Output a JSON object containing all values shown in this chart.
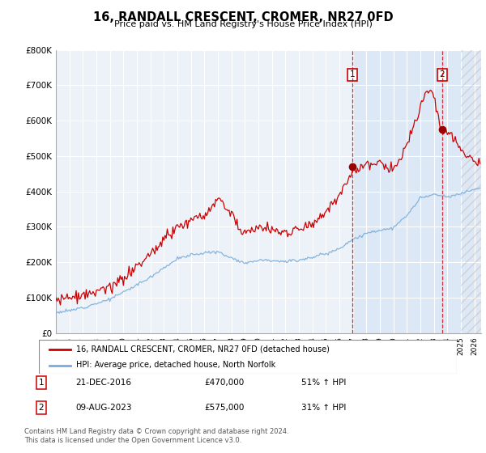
{
  "title": "16, RANDALL CRESCENT, CROMER, NR27 0FD",
  "subtitle": "Price paid vs. HM Land Registry's House Price Index (HPI)",
  "ylim": [
    0,
    800000
  ],
  "xlim_start": 1995.0,
  "xlim_end": 2026.5,
  "sale1_x": 2016.97,
  "sale1_y": 470000,
  "sale2_x": 2023.61,
  "sale2_y": 575000,
  "legend_line1": "16, RANDALL CRESCENT, CROMER, NR27 0FD (detached house)",
  "legend_line2": "HPI: Average price, detached house, North Norfolk",
  "annotation1_date": "21-DEC-2016",
  "annotation1_price": "£470,000",
  "annotation1_hpi": "51% ↑ HPI",
  "annotation2_date": "09-AUG-2023",
  "annotation2_price": "£575,000",
  "annotation2_hpi": "31% ↑ HPI",
  "footer": "Contains HM Land Registry data © Crown copyright and database right 2024.\nThis data is licensed under the Open Government Licence v3.0.",
  "red_color": "#cc0000",
  "blue_color": "#7aaddb",
  "highlight_color": "#dce8f5",
  "hatch_color": "#d4c8c8",
  "bg_color": "#edf2f9",
  "grid_color": "#ffffff"
}
